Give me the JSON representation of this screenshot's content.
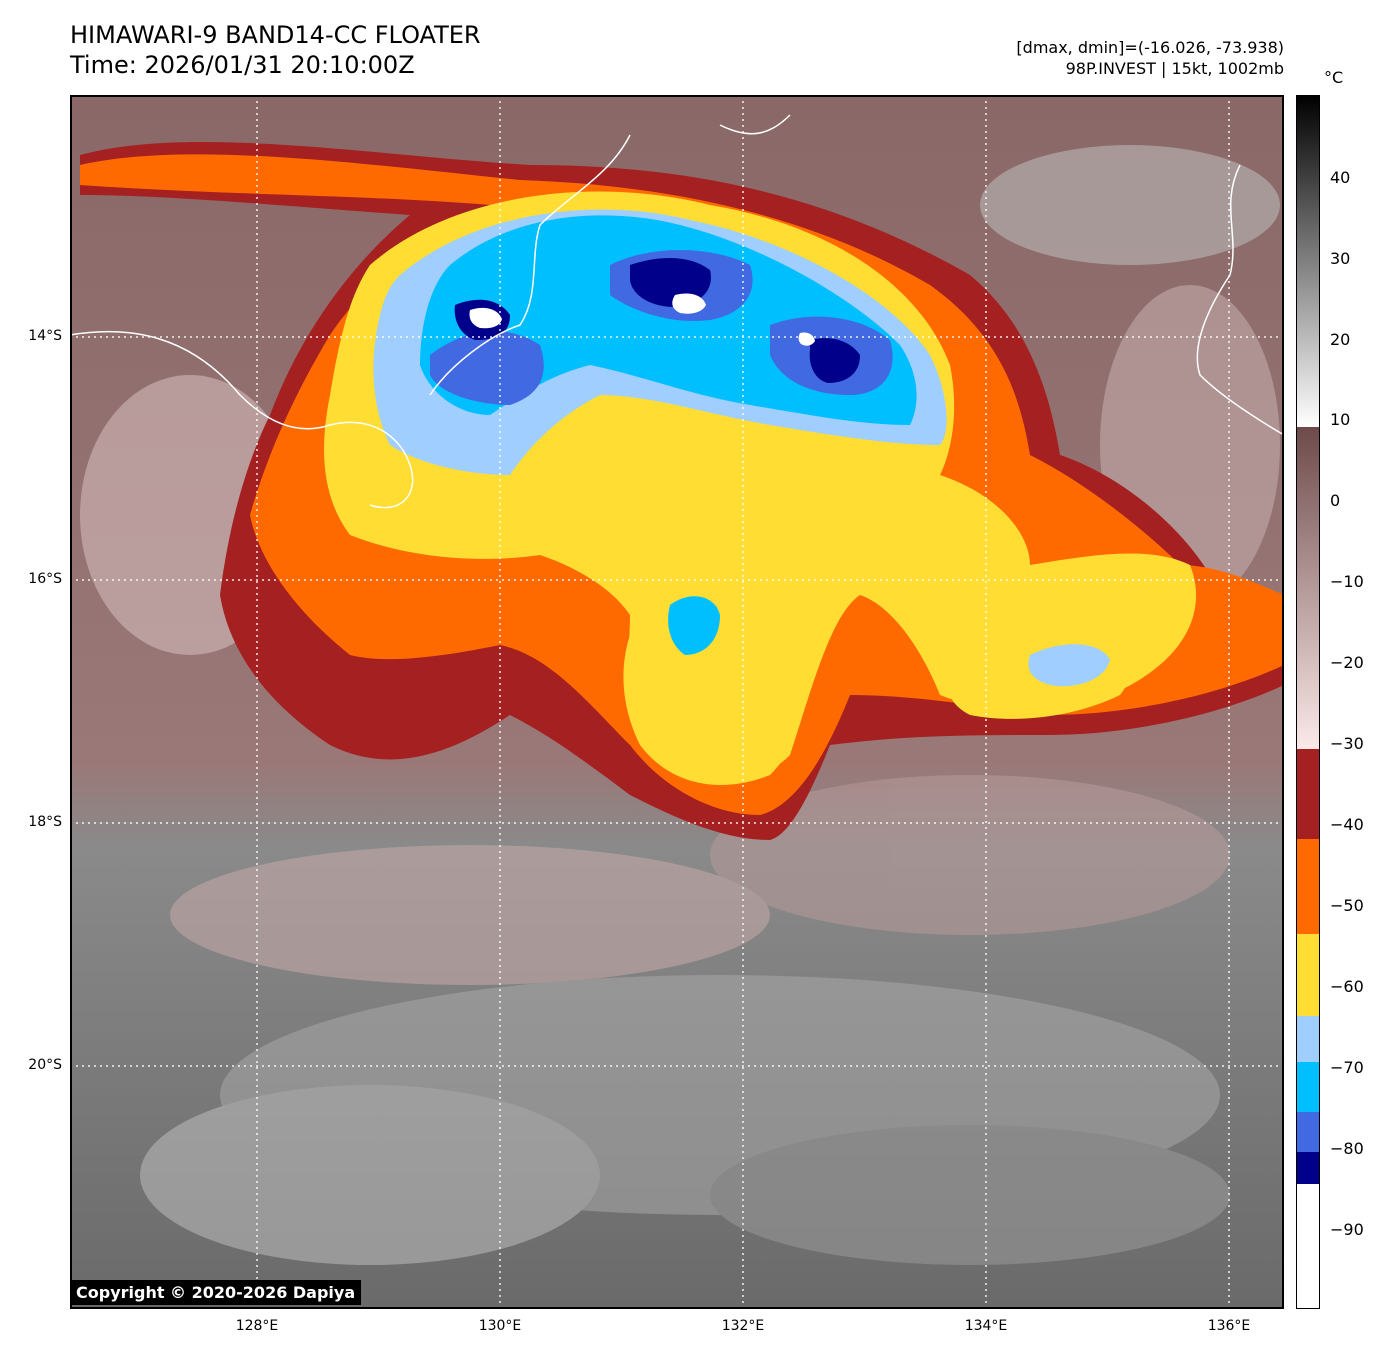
{
  "header": {
    "title_line1": "HIMAWARI-9 BAND14-CC FLOATER",
    "title_line2": "Time: 2026/01/31 20:10:00Z",
    "info_line1": "[dmax, dmin]=(-16.026, -73.938)",
    "info_line2": "98P.INVEST | 15kt, 1002mb"
  },
  "axes": {
    "lat_labels": [
      "14°S",
      "16°S",
      "18°S",
      "20°S"
    ],
    "lon_labels": [
      "128°E",
      "130°E",
      "132°E",
      "134°E",
      "136°E"
    ],
    "grid": "dotted"
  },
  "colorbar": {
    "unit": "°C",
    "tick_labels": [
      "40",
      "30",
      "20",
      "10",
      "0",
      "−10",
      "−20",
      "−30",
      "−40",
      "−50",
      "−60",
      "−70",
      "−80",
      "−90"
    ],
    "colors": {
      "cold_cloud_white": "#ffffff",
      "navy": "#00008b",
      "royal_blue": "#4169e1",
      "deep_sky_blue": "#00bfff",
      "light_sky_blue": "#a0cfff",
      "gold": "#ffdd33",
      "orange": "#ff6a00",
      "brown_red": "#a52020",
      "pink_warm": "#f0d5d5",
      "mauve": "#7a5555"
    }
  },
  "copyright": "Copyright © 2020-2026 Dapiya"
}
